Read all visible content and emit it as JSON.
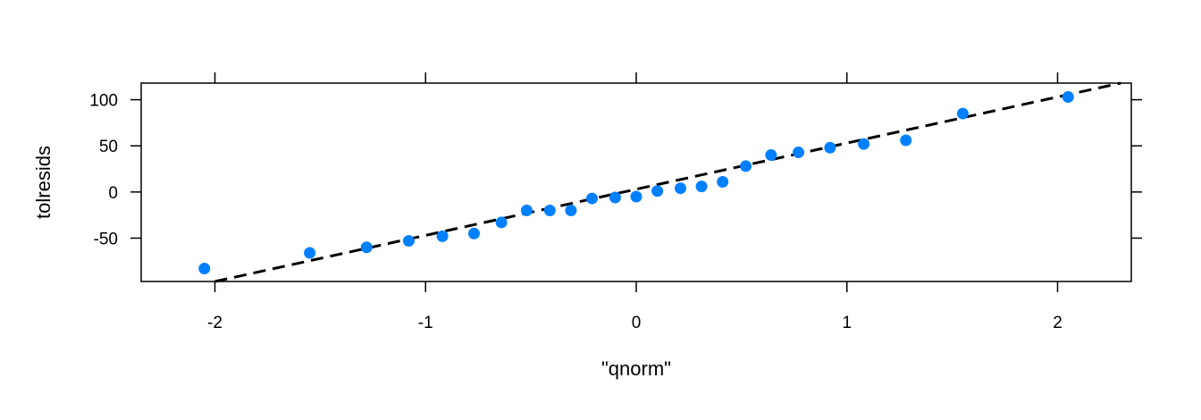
{
  "chart_data": {
    "type": "scatter",
    "title": "",
    "xlabel": "\"qnorm\"",
    "ylabel": "tolresids",
    "xlim": [
      -2.35,
      2.35
    ],
    "ylim": [
      -97,
      118
    ],
    "x_ticks": [
      -2,
      -1,
      0,
      1,
      2
    ],
    "x_tick_labels": [
      "-2",
      "-1",
      "0",
      "1",
      "2"
    ],
    "y_ticks": [
      -50,
      0,
      50,
      100
    ],
    "y_tick_labels": [
      "-50",
      "0",
      "50",
      "100"
    ],
    "grid": false,
    "point_color": "#0080ff",
    "line_color": "#000000",
    "series": [
      {
        "x": [
          -2.05,
          -1.55,
          -1.28,
          -1.08,
          -0.92,
          -0.77,
          -0.64,
          -0.52,
          -0.41,
          -0.31,
          -0.21,
          -0.1,
          0.0,
          0.1,
          0.21,
          0.31,
          0.41,
          0.52,
          0.64,
          0.77,
          0.92,
          1.08,
          1.28,
          1.55,
          2.05
        ],
        "y": [
          -83,
          -66,
          -60,
          -53,
          -48,
          -45,
          -33,
          -20,
          -20,
          -20,
          -7,
          -6,
          -5,
          1,
          4,
          6,
          11,
          28,
          40,
          43,
          48,
          52,
          56,
          85,
          103
        ]
      }
    ],
    "reference_line": {
      "slope": 50,
      "intercept": 3,
      "style": "dashed"
    }
  }
}
